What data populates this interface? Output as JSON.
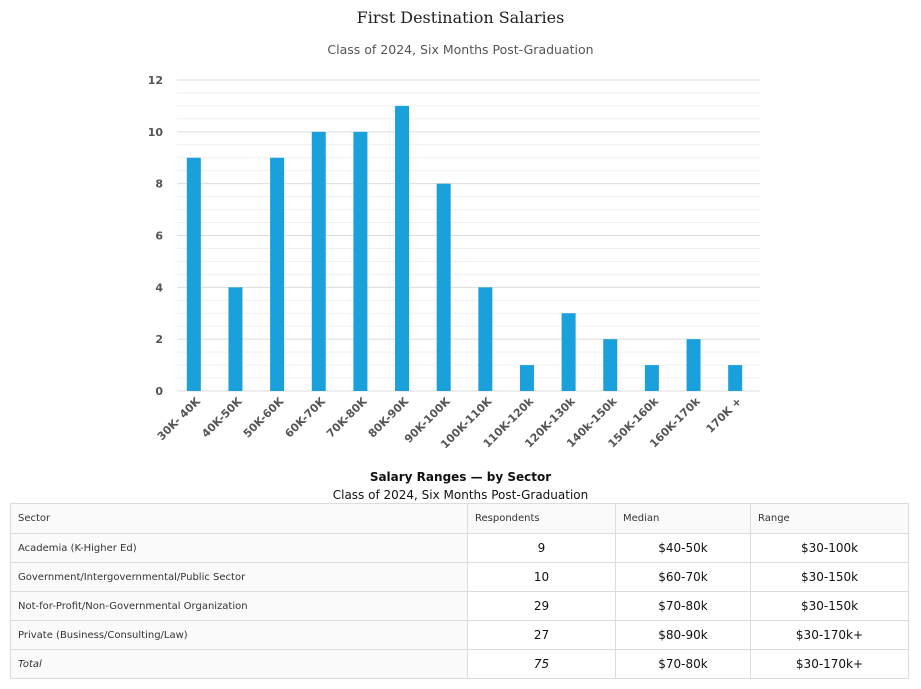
{
  "chart_data": {
    "type": "bar",
    "title": "First Destination Salaries",
    "subtitle": "Class of 2024, Six Months Post-Graduation",
    "categories": [
      "30K- 40K",
      "40K-50K",
      "50K-60K",
      "60K-70K",
      "70K-80K",
      "80K-90K",
      "90K-100K",
      "100K-110K",
      "110K-120k",
      "120K-130k",
      "140k-150k",
      "150K-160k",
      "160K-170k",
      "170K +"
    ],
    "values": [
      9,
      4,
      9,
      10,
      10,
      11,
      8,
      4,
      1,
      3,
      2,
      1,
      2,
      1
    ],
    "ylim": [
      0,
      12
    ],
    "yticks": [
      0,
      2,
      4,
      6,
      8,
      10,
      12
    ],
    "grid": true,
    "color": "#1aa0db"
  },
  "table": {
    "title": "Salary Ranges — by Sector",
    "subtitle": "Class of 2024, Six Months Post-Graduation",
    "headers": [
      "Sector",
      "Respondents",
      "Median",
      "Range"
    ],
    "rows": [
      [
        "Academia (K-Higher Ed)",
        "9",
        "$40-50k",
        "$30-100k"
      ],
      [
        "Government/Intergovernmental/Public Sector",
        "10",
        "$60-70k",
        "$30-150k"
      ],
      [
        "Not-for-Profit/Non-Governmental Organization",
        "29",
        "$70-80k",
        "$30-150k"
      ],
      [
        "Private (Business/Consulting/Law)",
        "27",
        "$80-90k",
        "$30-170k+"
      ],
      [
        "Total",
        "75",
        "$70-80k",
        "$30-170k+"
      ]
    ]
  }
}
